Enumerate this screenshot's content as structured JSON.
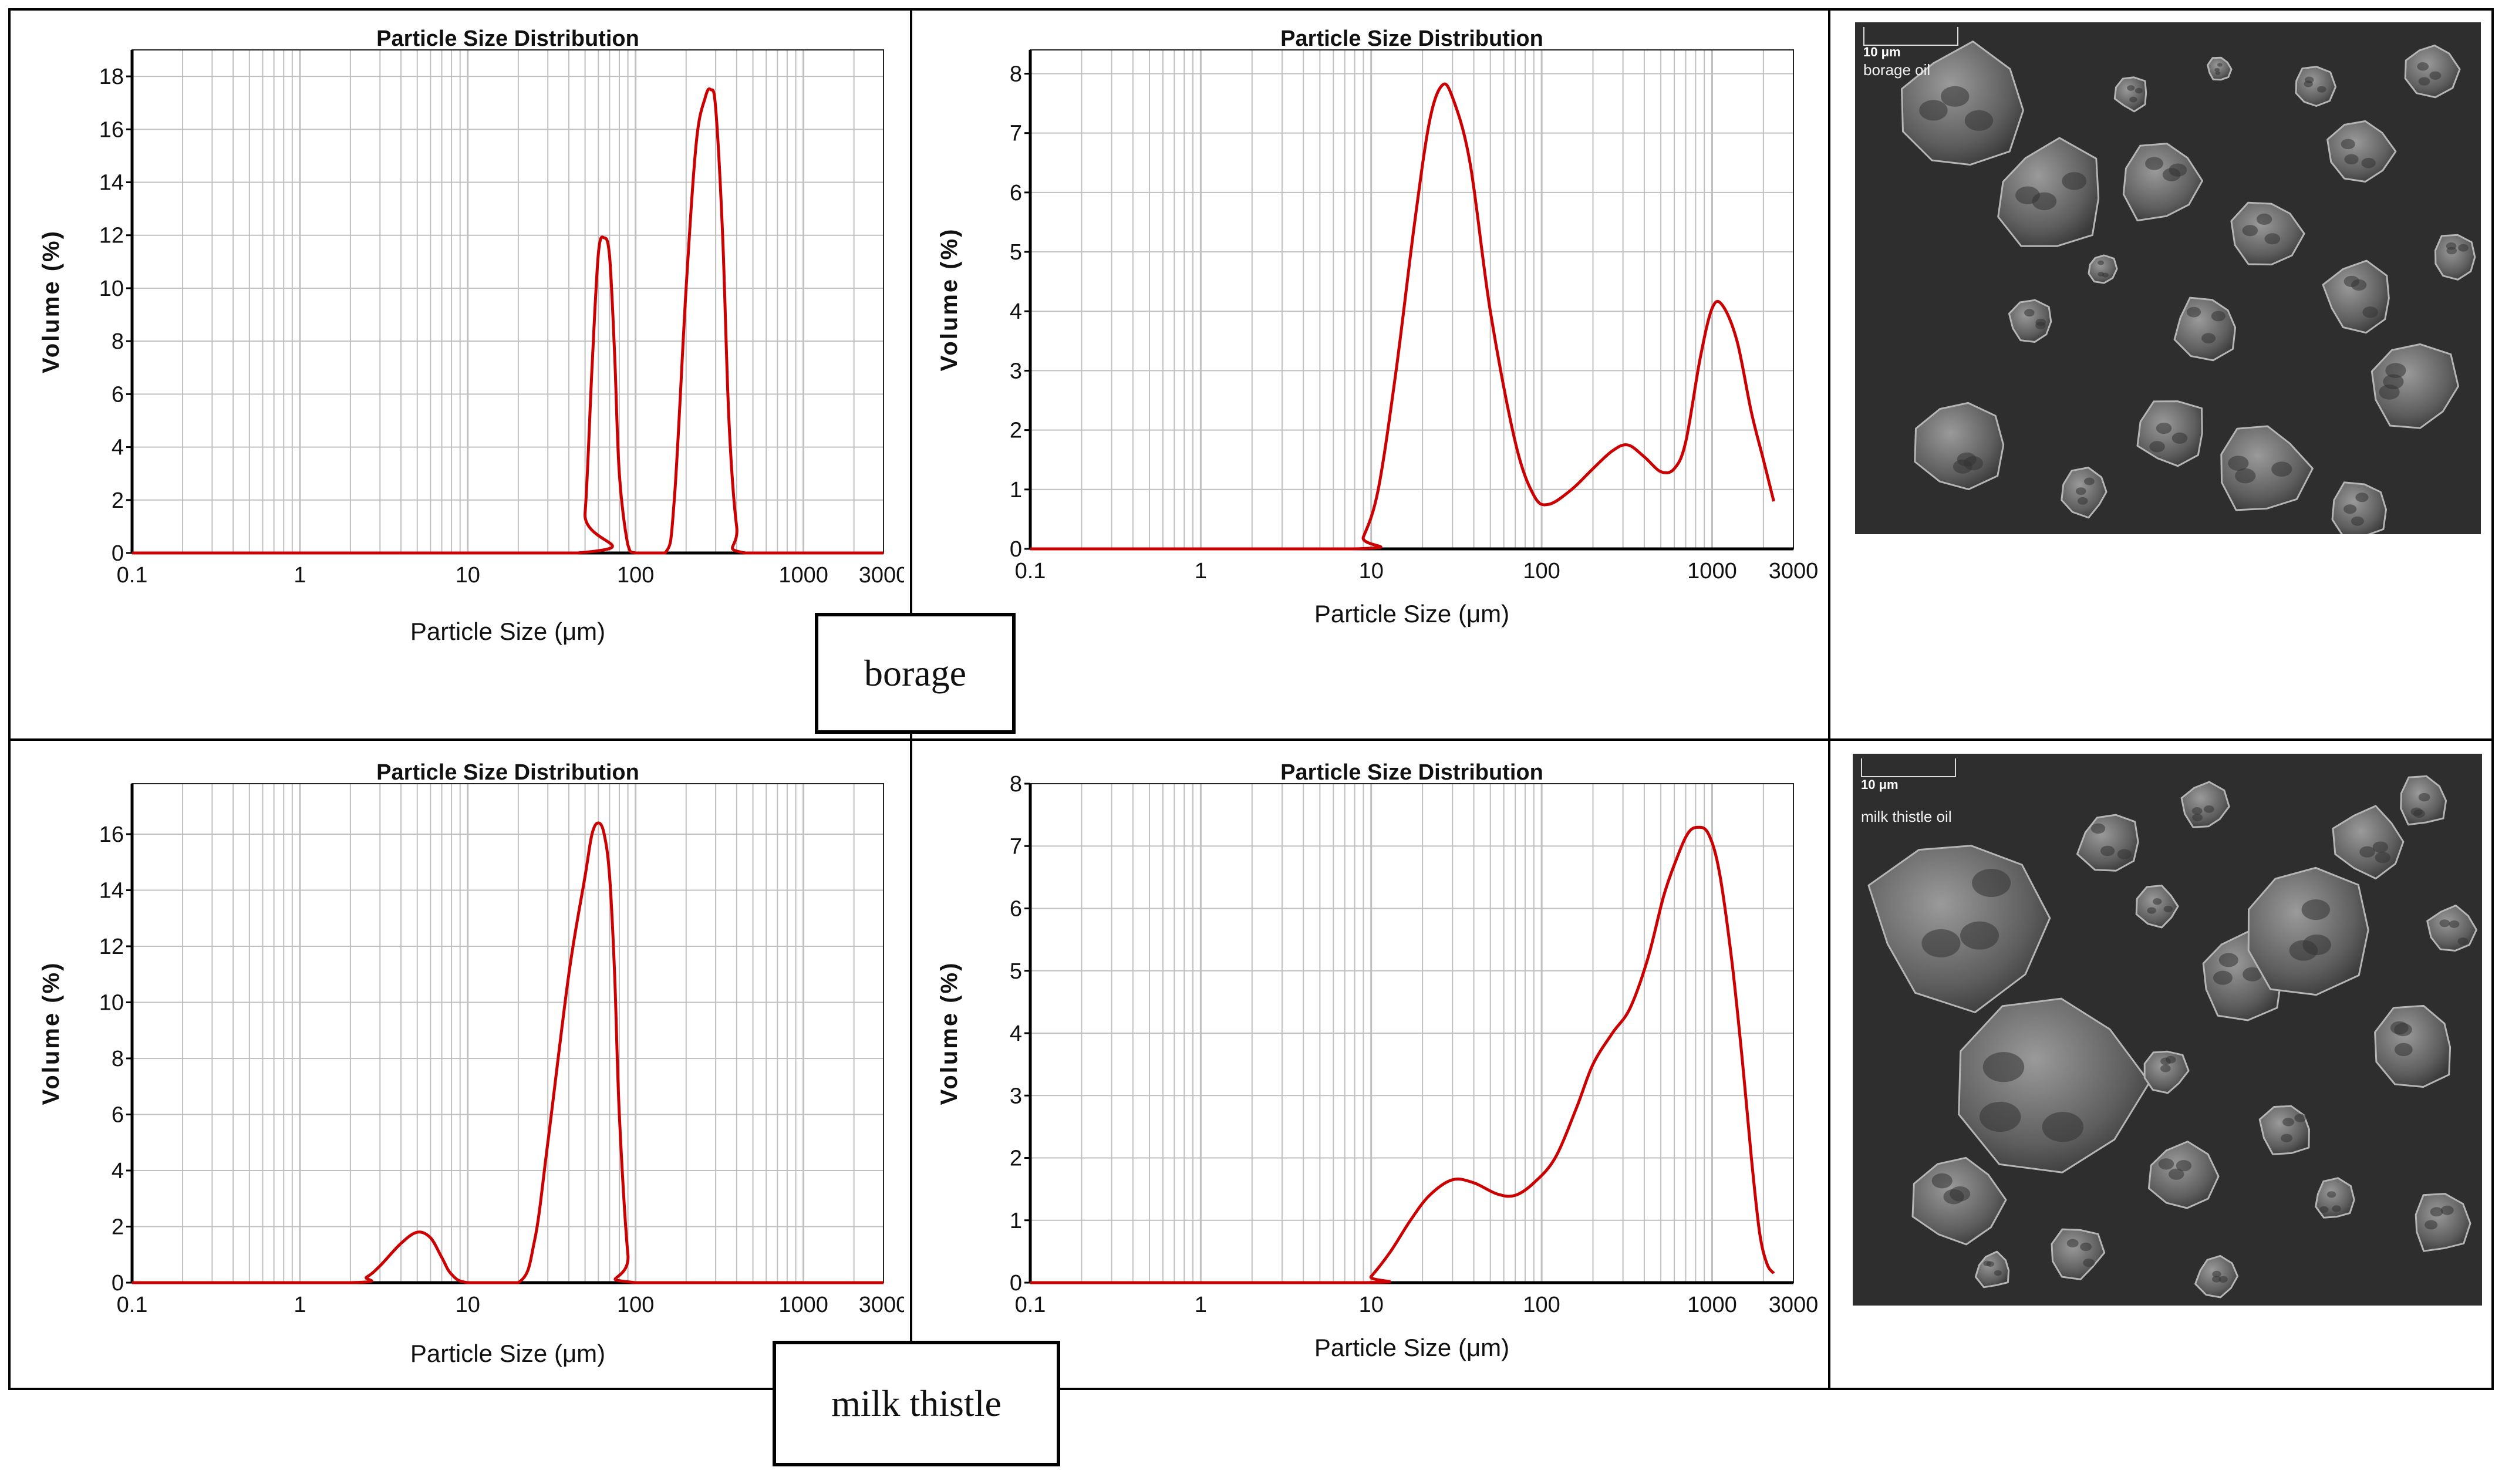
{
  "labels": {
    "borage": "borage",
    "milk_thistle": "milk thistle"
  },
  "sem": {
    "borage": {
      "scale": "10 μm",
      "caption": "borage oil"
    },
    "milk_thistle": {
      "scale": "10 μm",
      "caption": "milk thistle oil"
    }
  },
  "colors": {
    "curve": "#cc0000",
    "grid": "#c0c0c0",
    "sem_bg": "#2e2e2e",
    "particle": "#6a6a6a"
  },
  "chart_data": [
    {
      "type": "line",
      "title": "Particle Size Distribution",
      "xlabel": "Particle Size (μm)",
      "ylabel": "Volume (%)",
      "xscale": "log",
      "xlim": [
        0.1,
        3000
      ],
      "ylim": [
        0,
        19
      ],
      "yticks": [
        0,
        2,
        4,
        6,
        8,
        10,
        12,
        14,
        16,
        18
      ],
      "xticks": [
        "0.1",
        "1",
        "10",
        "100",
        "1000",
        "3000"
      ],
      "series": [
        {
          "x": [
            0.1,
            45,
            50,
            55,
            60,
            65,
            70,
            75,
            80,
            90,
            100,
            150,
            170,
            200,
            230,
            260,
            280,
            300,
            330,
            360,
            400,
            450,
            3000
          ],
          "y": [
            0,
            0,
            1.5,
            7,
            11.3,
            11.9,
            11.2,
            7.5,
            3,
            0.3,
            0,
            0,
            2,
            10,
            15.5,
            17.2,
            17.5,
            16.8,
            12,
            5,
            1,
            0,
            0
          ]
        }
      ]
    },
    {
      "type": "line",
      "title": "Particle Size Distribution",
      "xlabel": "Particle Size (μm)",
      "ylabel": "Volume (%)",
      "xscale": "log",
      "xlim": [
        0.1,
        3000
      ],
      "ylim": [
        0,
        8.4
      ],
      "yticks": [
        0,
        1,
        2,
        3,
        4,
        5,
        6,
        7,
        8
      ],
      "xticks": [
        "0.1",
        "1",
        "10",
        "100",
        "1000",
        "3000"
      ],
      "series": [
        {
          "x": [
            0.1,
            8,
            9,
            11,
            14,
            18,
            22,
            26,
            30,
            38,
            50,
            70,
            90,
            110,
            150,
            200,
            260,
            320,
            400,
            500,
            600,
            700,
            850,
            1000,
            1150,
            1400,
            1700,
            2000,
            2300
          ],
          "y": [
            0,
            0,
            0.2,
            1,
            3,
            5.5,
            7.2,
            7.8,
            7.6,
            6.5,
            4,
            1.8,
            0.9,
            0.75,
            1,
            1.35,
            1.65,
            1.75,
            1.55,
            1.3,
            1.35,
            1.8,
            3.2,
            4.05,
            4.1,
            3.5,
            2.3,
            1.5,
            0.8
          ]
        }
      ]
    },
    {
      "type": "line",
      "title": "Particle Size Distribution",
      "xlabel": "Particle Size (μm)",
      "ylabel": "Volume (%)",
      "xscale": "log",
      "xlim": [
        0.1,
        3000
      ],
      "ylim": [
        0,
        17.8
      ],
      "yticks": [
        0,
        2,
        4,
        6,
        8,
        10,
        12,
        14,
        16
      ],
      "xticks": [
        "0.1",
        "1",
        "10",
        "100",
        "1000",
        "3000"
      ],
      "series": [
        {
          "x": [
            0.1,
            2,
            2.5,
            3,
            4,
            5,
            6,
            7,
            8,
            10,
            20,
            25,
            30,
            40,
            50,
            55,
            60,
            65,
            70,
            75,
            80,
            90,
            100,
            3000
          ],
          "y": [
            0,
            0,
            0.2,
            0.6,
            1.4,
            1.8,
            1.6,
            0.9,
            0.3,
            0,
            0,
            1.5,
            5,
            11,
            14.5,
            16,
            16.4,
            16,
            14.5,
            11,
            6,
            1,
            0,
            0
          ]
        }
      ]
    },
    {
      "type": "line",
      "title": "Particle Size Distribution",
      "xlabel": "Particle Size (μm)",
      "ylabel": "Volume (%)",
      "xscale": "log",
      "xlim": [
        0.1,
        3000
      ],
      "ylim": [
        0,
        8
      ],
      "yticks": [
        0,
        1,
        2,
        3,
        4,
        5,
        6,
        7,
        8
      ],
      "xticks": [
        "0.1",
        "1",
        "10",
        "100",
        "1000",
        "3000"
      ],
      "series": [
        {
          "x": [
            0.1,
            9,
            10,
            13,
            17,
            22,
            30,
            40,
            55,
            70,
            90,
            120,
            160,
            200,
            260,
            330,
            420,
            520,
            620,
            720,
            820,
            950,
            1100,
            1300,
            1500,
            1700,
            1900,
            2100,
            2300
          ],
          "y": [
            0,
            0,
            0.1,
            0.5,
            1,
            1.4,
            1.65,
            1.6,
            1.42,
            1.4,
            1.6,
            2,
            2.8,
            3.5,
            4,
            4.4,
            5.2,
            6.2,
            6.8,
            7.2,
            7.3,
            7.2,
            6.6,
            5.2,
            3.6,
            2,
            0.8,
            0.3,
            0.15
          ]
        }
      ]
    }
  ]
}
